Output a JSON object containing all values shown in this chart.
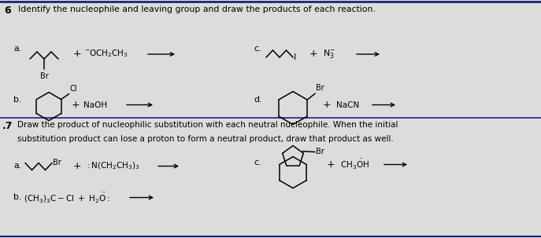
{
  "bg_color": "#dcdcdc",
  "line_color": "#1a237e",
  "fig_w": 6.87,
  "fig_h": 3.03,
  "dpi": 100,
  "section6_title": "Identify the nucleophile and leaving group and draw the products of each reaction.",
  "section7_line1": "Draw the product of nucleophilic substitution with each neutral nucleophile. When the initial",
  "section7_line2": "substitution product can lose a proton to form a neutral product, draw that product as well."
}
